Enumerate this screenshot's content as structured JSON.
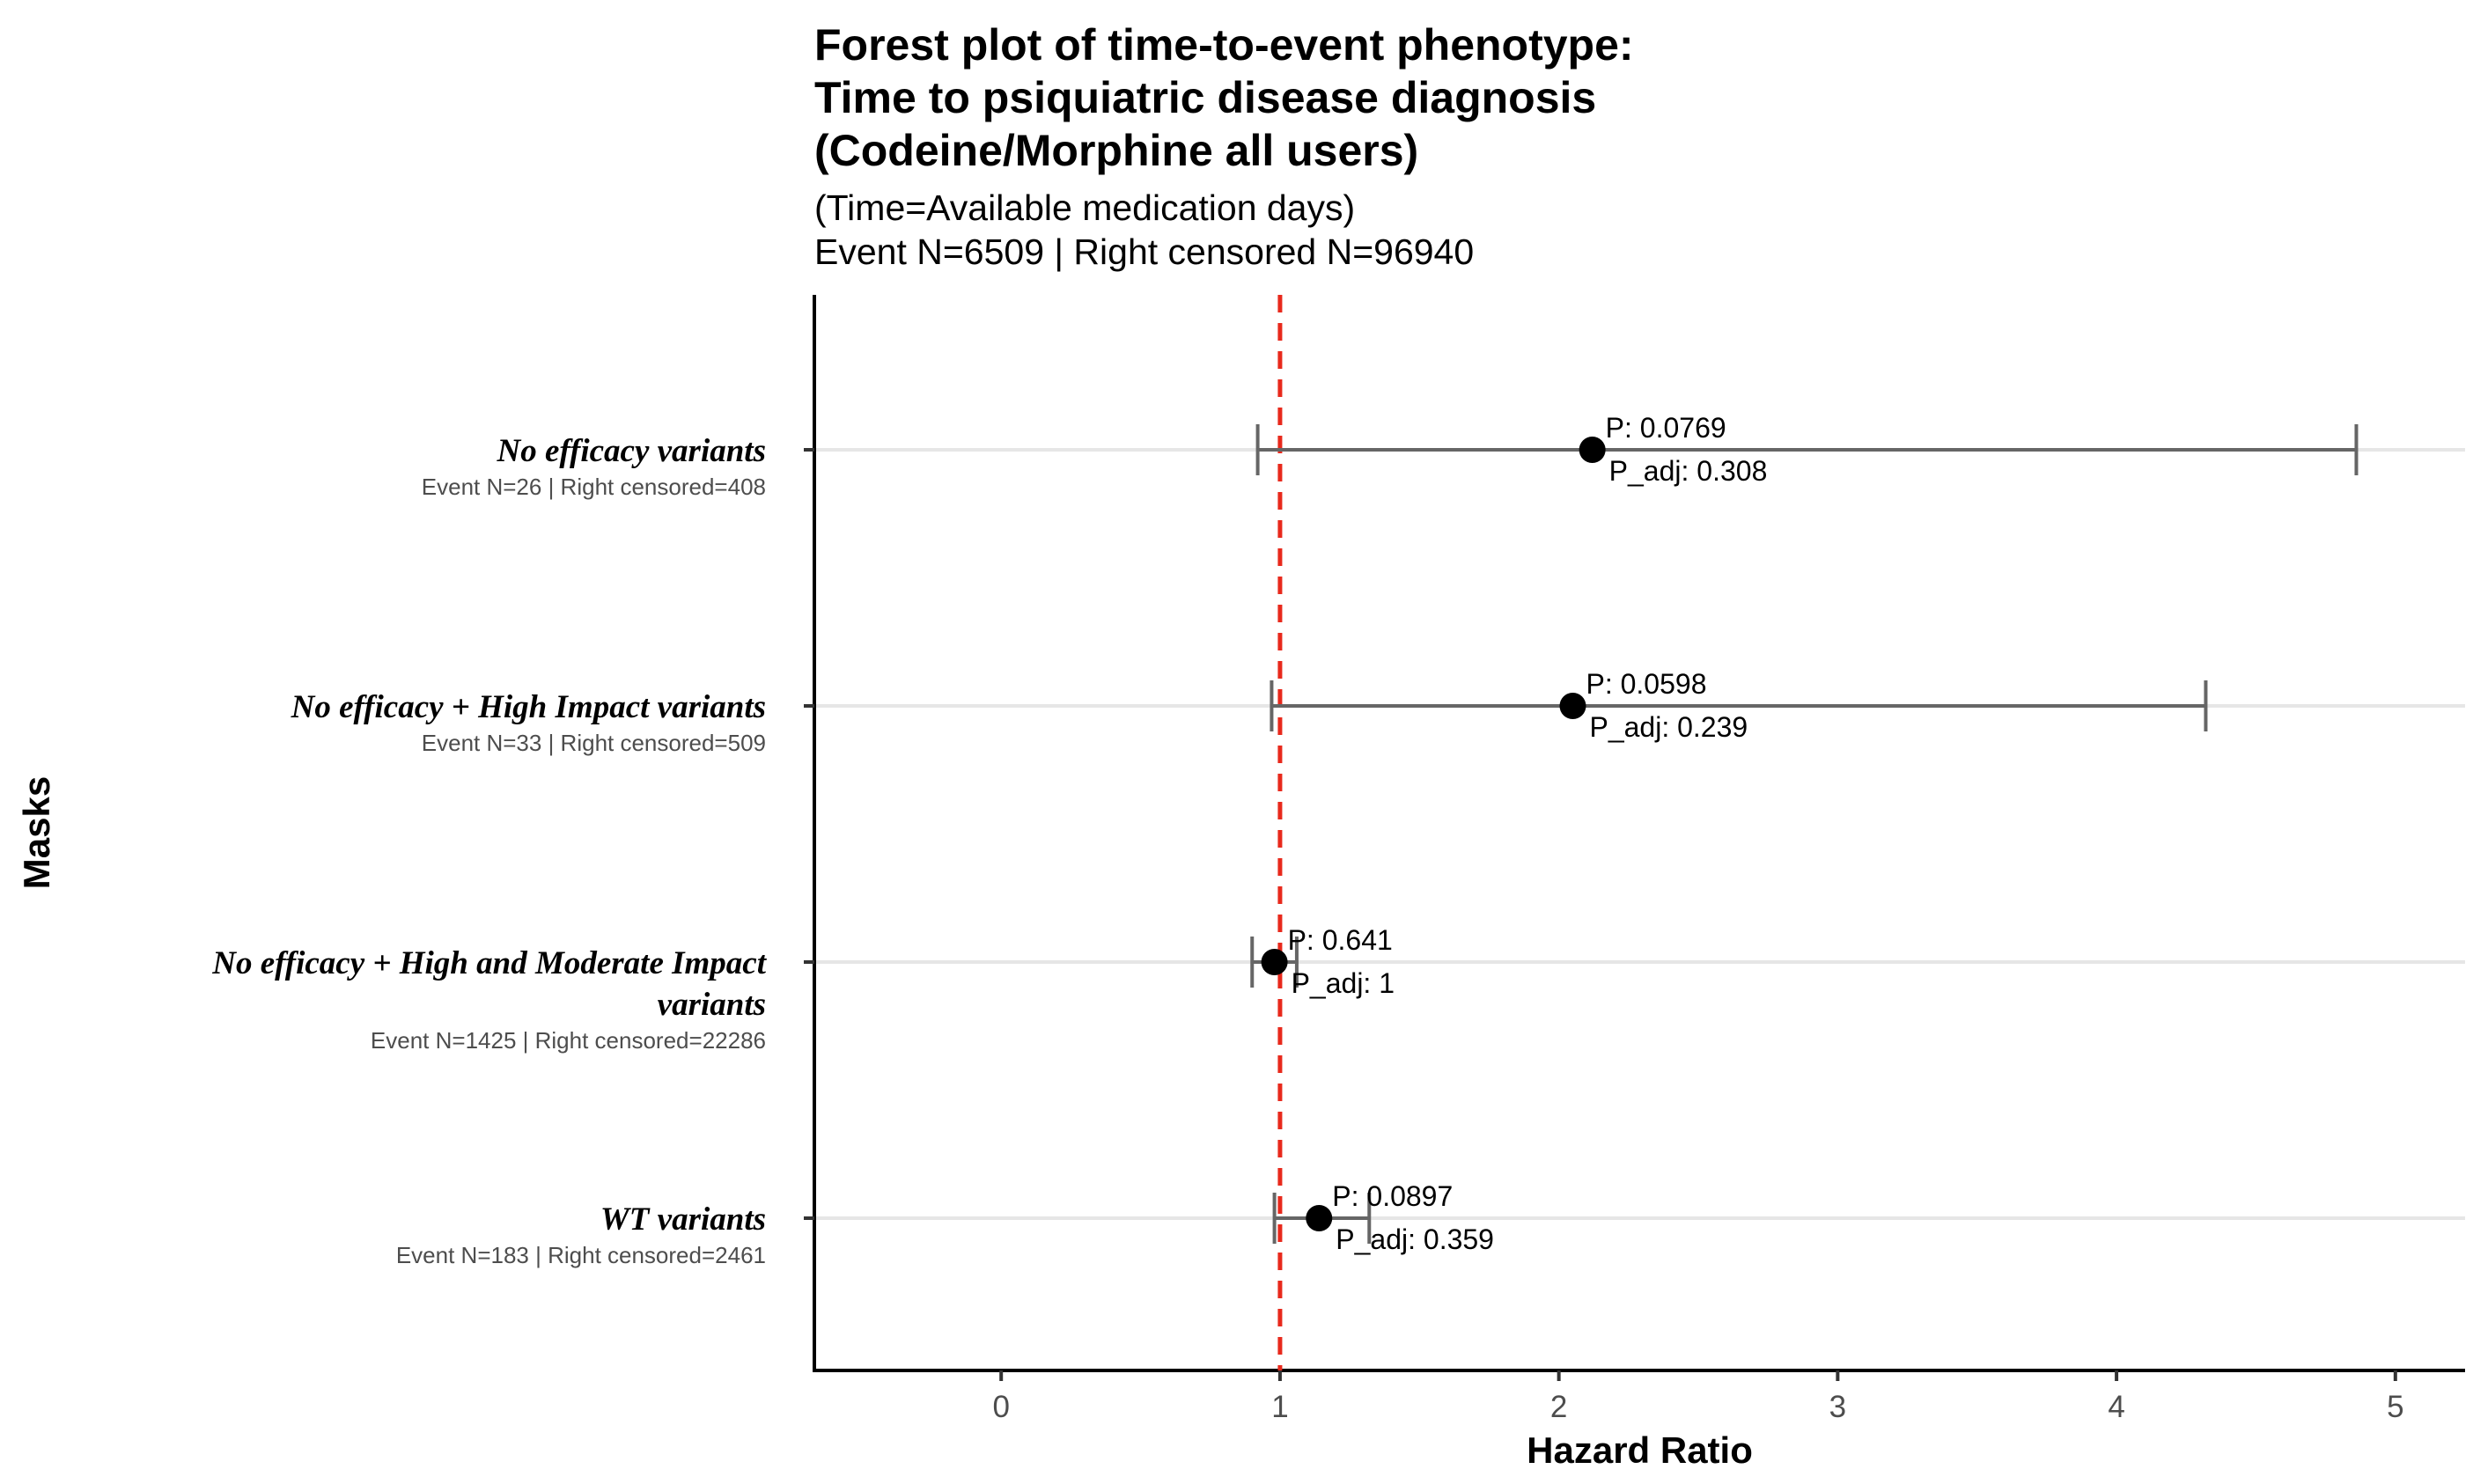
{
  "chart_data": {
    "type": "forest",
    "title": [
      "Forest plot of time-to-event phenotype:",
      "Time to psiquiatric disease diagnosis",
      "(Codeine/Morphine all users)"
    ],
    "subtitle": [
      "(Time=Available medication days)",
      "Event N=6509 | Right censored N=96940"
    ],
    "xlabel": "Hazard Ratio",
    "ylabel": "Masks",
    "xlim": [
      -0.67,
      5.25
    ],
    "x_ticks": [
      0,
      1,
      2,
      3,
      4,
      5
    ],
    "reference_line": {
      "x": 1,
      "color": "#e8291c",
      "style": "dashed"
    },
    "grid": "horizontal-major",
    "point_color": "#000000",
    "ci_color": "#666666",
    "rows": [
      {
        "label": [
          "No efficacy variants"
        ],
        "sublabel": "Event N=26 | Right censored=408",
        "hr": 2.12,
        "ci_low": 0.92,
        "ci_high": 4.86,
        "p_label": "P: 0.0769",
        "p_adj_label": "P_adj: 0.308"
      },
      {
        "label": [
          "No efficacy + High Impact variants"
        ],
        "sublabel": "Event N=33 | Right censored=509",
        "hr": 2.05,
        "ci_low": 0.97,
        "ci_high": 4.32,
        "p_label": "P: 0.0598",
        "p_adj_label": "P_adj: 0.239"
      },
      {
        "label": [
          "No efficacy + High and Moderate Impact",
          "variants"
        ],
        "sublabel": "Event N=1425 | Right censored=22286",
        "hr": 0.98,
        "ci_low": 0.9,
        "ci_high": 1.06,
        "p_label": "P: 0.641",
        "p_adj_label": "P_adj: 1"
      },
      {
        "label": [
          "WT variants"
        ],
        "sublabel": "Event N=183 | Right censored=2461",
        "hr": 1.14,
        "ci_low": 0.98,
        "ci_high": 1.32,
        "p_label": "P: 0.0897",
        "p_adj_label": "P_adj: 0.359"
      }
    ]
  }
}
